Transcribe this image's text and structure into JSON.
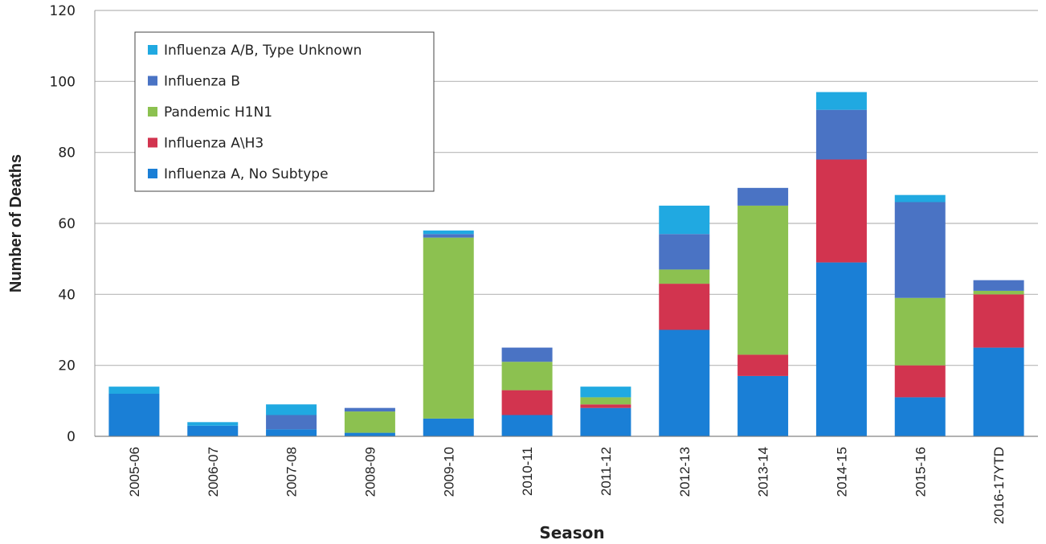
{
  "chart_data": {
    "type": "bar",
    "stacked": true,
    "x_label": "Season",
    "y_label": "Number of Deaths",
    "categories": [
      "2005-06",
      "2006-07",
      "2007-08",
      "2008-09",
      "2009-10",
      "2010-11",
      "2011-12",
      "2012-13",
      "2013-14",
      "2014-15",
      "2015-16",
      "2016-17YTD"
    ],
    "series": [
      {
        "name": "Influenza A, No Subtype",
        "color": "#1a7fd6",
        "values": [
          12,
          3,
          2,
          1,
          5,
          6,
          8,
          30,
          17,
          49,
          11,
          25
        ]
      },
      {
        "name": "Influenza A\\H3",
        "color": "#d2344f",
        "values": [
          0,
          0,
          0,
          0,
          0,
          7,
          1,
          13,
          6,
          29,
          9,
          15
        ]
      },
      {
        "name": "Pandemic H1N1",
        "color": "#8cc150",
        "values": [
          0,
          0,
          0,
          6,
          51,
          8,
          2,
          4,
          42,
          0,
          19,
          1
        ]
      },
      {
        "name": "Influenza B",
        "color": "#4a73c4",
        "values": [
          0,
          0,
          4,
          1,
          1,
          4,
          0,
          10,
          5,
          14,
          27,
          3
        ]
      },
      {
        "name": "Influenza A/B, Type Unknown",
        "color": "#20a9e1",
        "values": [
          2,
          1,
          3,
          0,
          1,
          0,
          3,
          8,
          0,
          5,
          2,
          0
        ]
      }
    ],
    "ylim": [
      0,
      120
    ],
    "yticks": [
      0,
      20,
      40,
      60,
      80,
      100,
      120
    ],
    "grid": true,
    "legend": "upper left"
  }
}
